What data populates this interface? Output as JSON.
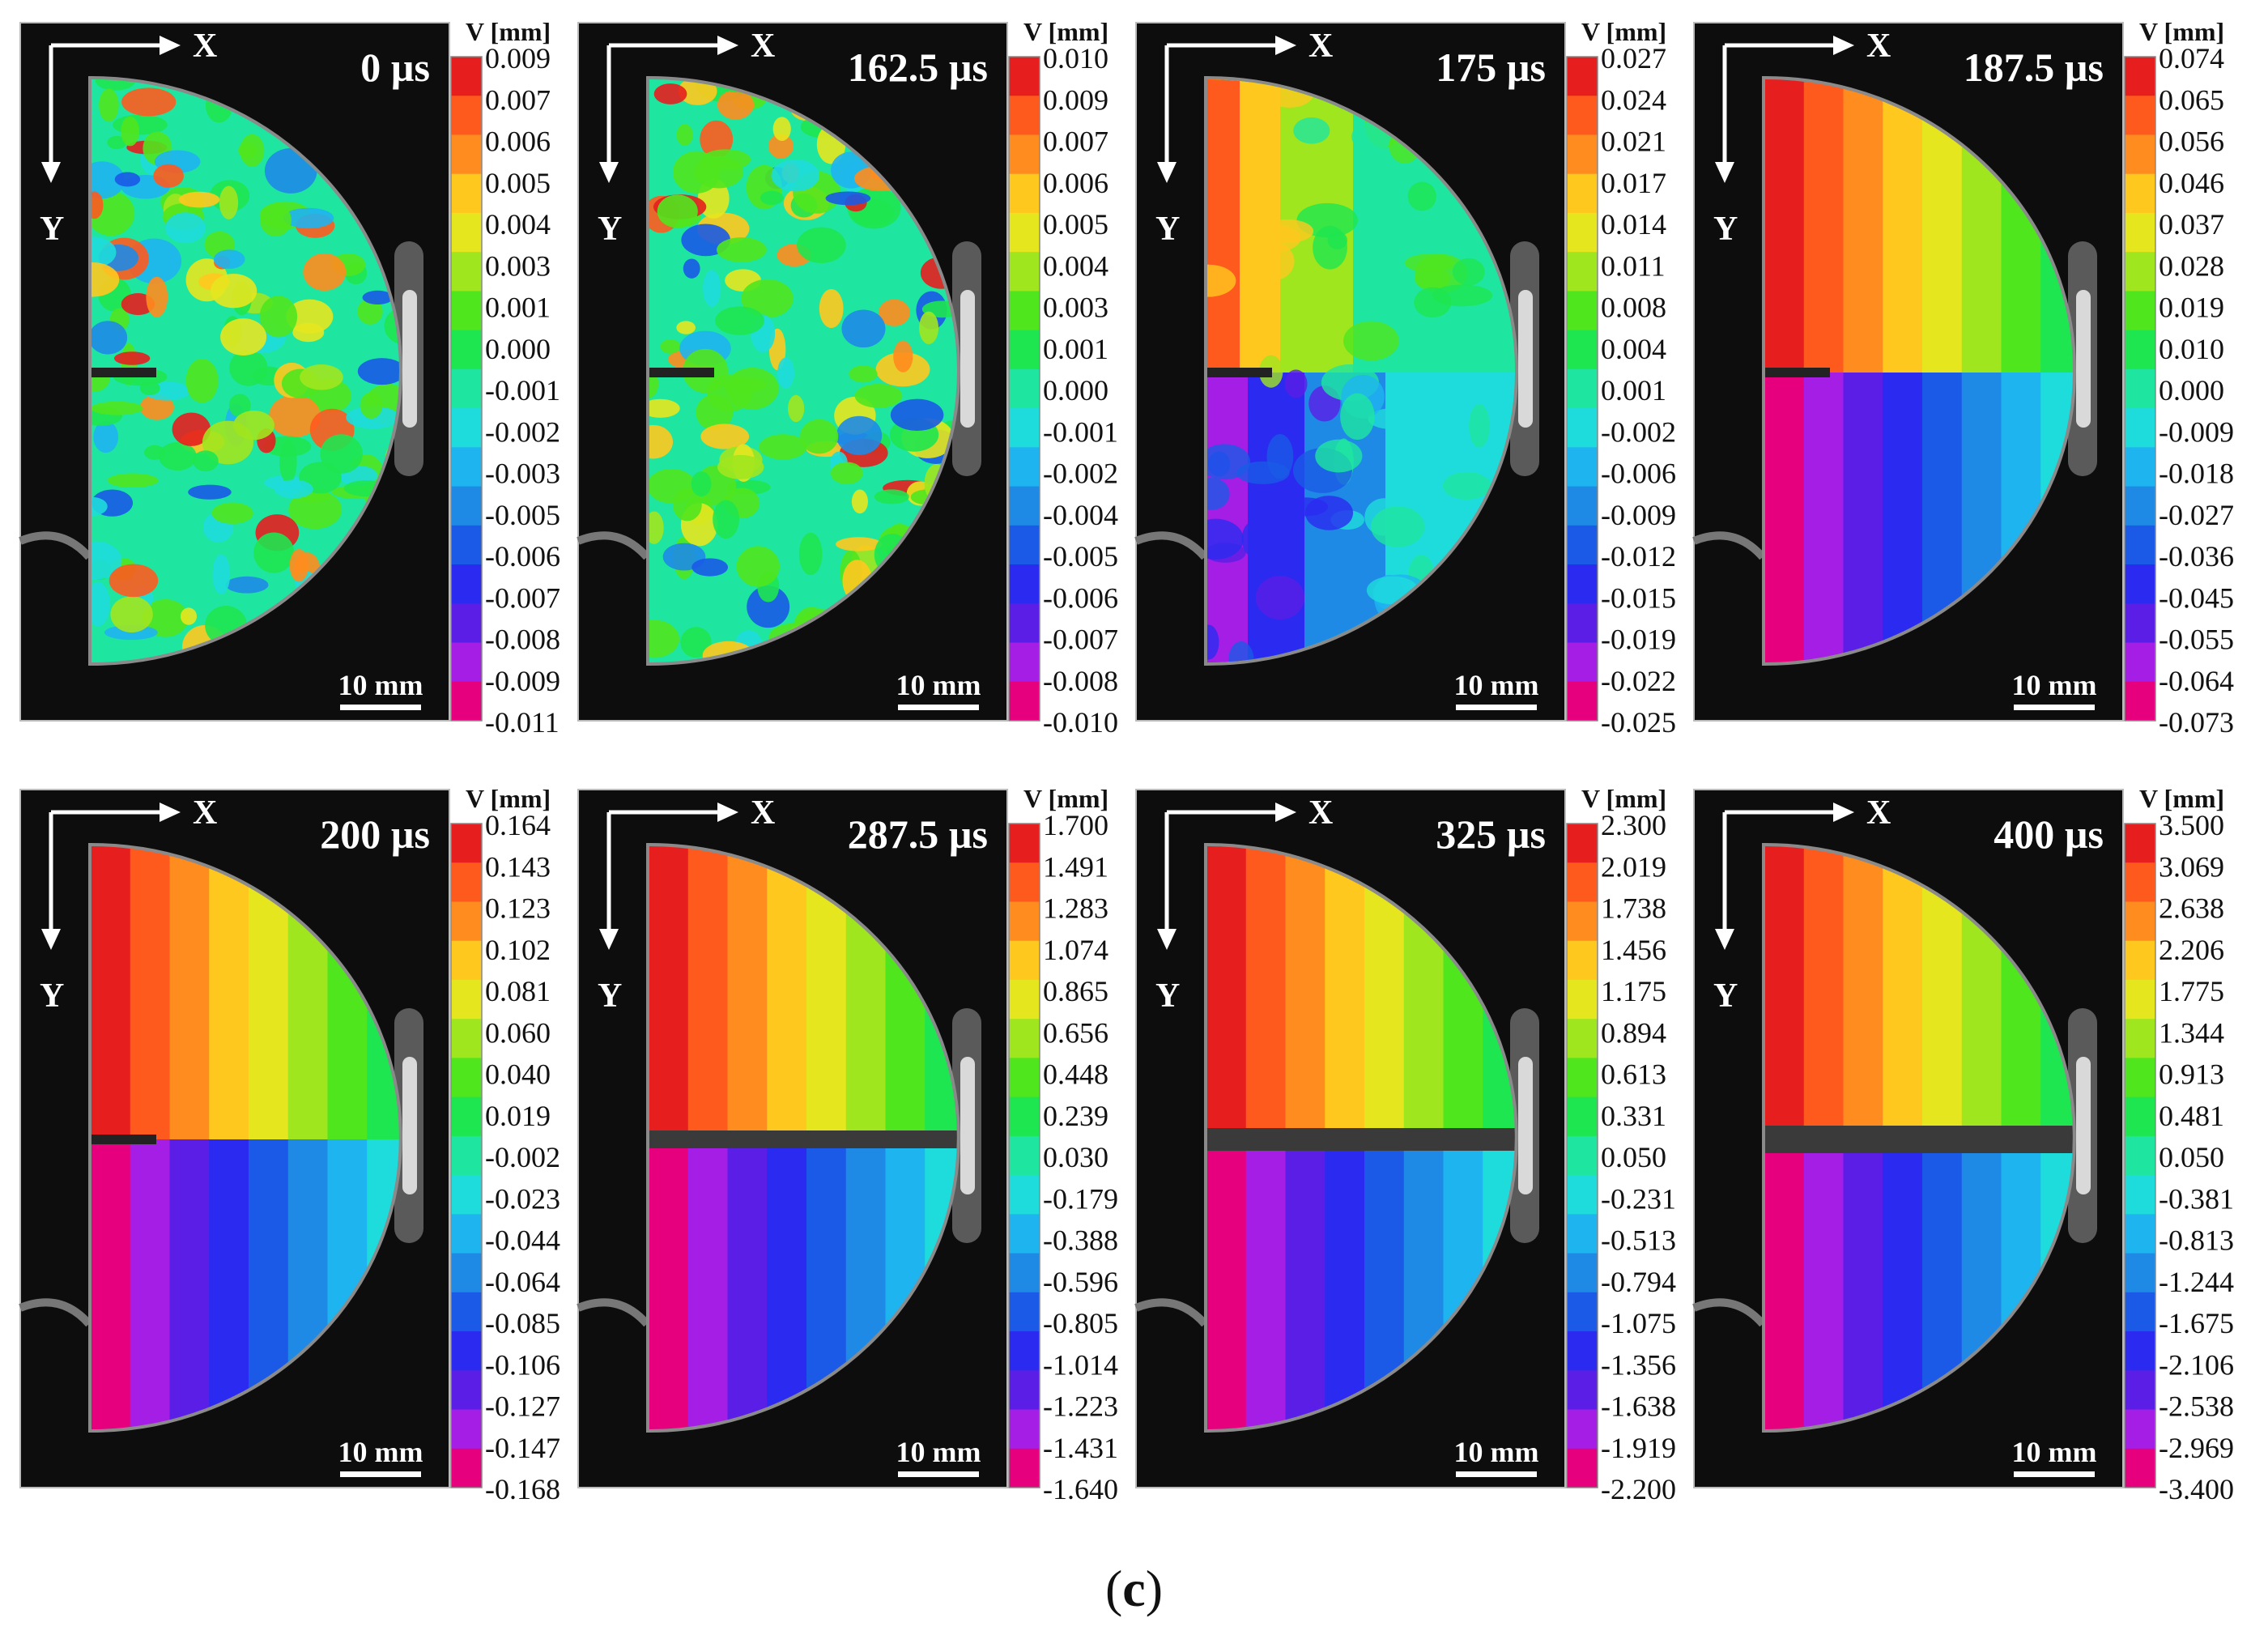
{
  "figure": {
    "caption_left": "(",
    "caption_letter": "c",
    "caption_right": ")",
    "axis_x_label": "X",
    "axis_y_label": "Y",
    "colorbar_title": "V [mm]",
    "scale_bar_label": "10 mm",
    "colors": {
      "background": "#ffffff",
      "image_bg": "#0d0d0d",
      "scale_stops": [
        "#e6007e",
        "#a41ee6",
        "#5a1ee6",
        "#2a2af0",
        "#1a5ae6",
        "#1e8ae6",
        "#1eb4f0",
        "#1edcdc",
        "#1ee6a0",
        "#1ee650",
        "#50e61e",
        "#a0e61e",
        "#e6e61e",
        "#ffc81e",
        "#ff8c1e",
        "#ff5a1e",
        "#e61e1e"
      ]
    },
    "panels": [
      {
        "time": "0 µs",
        "pattern": "noise",
        "cracked": false,
        "scale": [
          "0.009",
          "0.007",
          "0.006",
          "0.005",
          "0.004",
          "0.003",
          "0.001",
          "0.000",
          "-0.001",
          "-0.002",
          "-0.003",
          "-0.005",
          "-0.006",
          "-0.007",
          "-0.008",
          "-0.009",
          "-0.011"
        ]
      },
      {
        "time": "162.5 µs",
        "pattern": "noise",
        "cracked": false,
        "scale": [
          "0.010",
          "0.009",
          "0.007",
          "0.006",
          "0.005",
          "0.004",
          "0.003",
          "0.001",
          "0.000",
          "-0.001",
          "-0.002",
          "-0.004",
          "-0.005",
          "-0.006",
          "-0.007",
          "-0.008",
          "-0.010"
        ]
      },
      {
        "time": "175 µs",
        "pattern": "split-soft",
        "cracked": false,
        "scale": [
          "0.027",
          "0.024",
          "0.021",
          "0.017",
          "0.014",
          "0.011",
          "0.008",
          "0.004",
          "0.001",
          "-0.002",
          "-0.006",
          "-0.009",
          "-0.012",
          "-0.015",
          "-0.019",
          "-0.022",
          "-0.025"
        ]
      },
      {
        "time": "187.5 µs",
        "pattern": "split",
        "cracked": false,
        "scale": [
          "0.074",
          "0.065",
          "0.056",
          "0.046",
          "0.037",
          "0.028",
          "0.019",
          "0.010",
          "0.000",
          "-0.009",
          "-0.018",
          "-0.027",
          "-0.036",
          "-0.045",
          "-0.055",
          "-0.064",
          "-0.073"
        ]
      },
      {
        "time": "200 µs",
        "pattern": "split",
        "cracked": false,
        "scale": [
          "0.164",
          "0.143",
          "0.123",
          "0.102",
          "0.081",
          "0.060",
          "0.040",
          "0.019",
          "-0.002",
          "-0.023",
          "-0.044",
          "-0.064",
          "-0.085",
          "-0.106",
          "-0.127",
          "-0.147",
          "-0.168"
        ]
      },
      {
        "time": "287.5 µs",
        "pattern": "split",
        "cracked": true,
        "scale": [
          "1.700",
          "1.491",
          "1.283",
          "1.074",
          "0.865",
          "0.656",
          "0.448",
          "0.239",
          "0.030",
          "-0.179",
          "-0.388",
          "-0.596",
          "-0.805",
          "-1.014",
          "-1.223",
          "-1.431",
          "-1.640"
        ]
      },
      {
        "time": "325 µs",
        "pattern": "split",
        "cracked": true,
        "scale": [
          "2.300",
          "2.019",
          "1.738",
          "1.456",
          "1.175",
          "0.894",
          "0.613",
          "0.331",
          "0.050",
          "-0.231",
          "-0.513",
          "-0.794",
          "-1.075",
          "-1.356",
          "-1.638",
          "-1.919",
          "-2.200"
        ]
      },
      {
        "time": "400 µs",
        "pattern": "split",
        "cracked": true,
        "scale": [
          "3.500",
          "3.069",
          "2.638",
          "2.206",
          "1.775",
          "1.344",
          "0.913",
          "0.481",
          "0.050",
          "-0.381",
          "-0.813",
          "-1.244",
          "-1.675",
          "-2.106",
          "-2.538",
          "-2.969",
          "-3.400"
        ]
      }
    ]
  }
}
